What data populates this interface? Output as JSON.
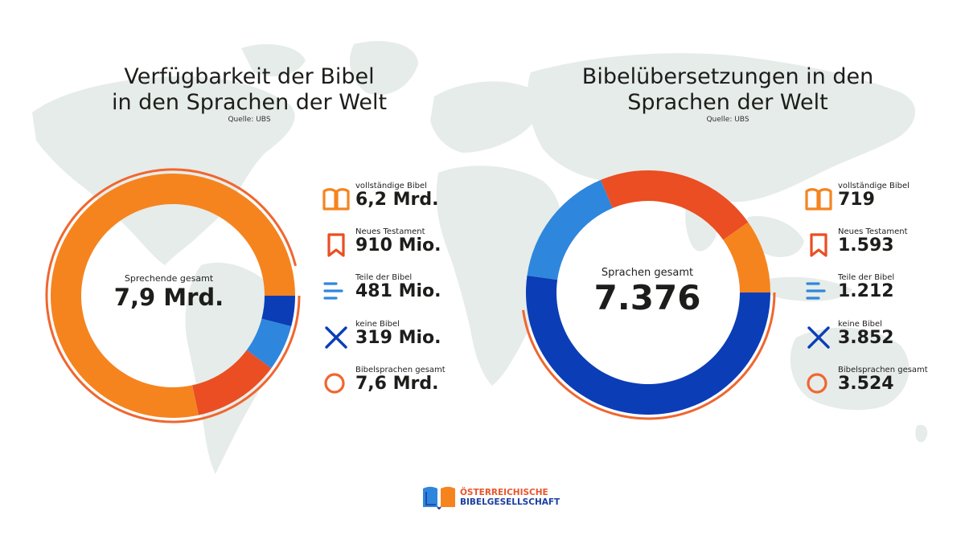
{
  "colors": {
    "map": "#e6ece9",
    "orange": "#f5841f",
    "red": "#ea4e22",
    "lightblue": "#2f86dd",
    "darkblue": "#0b3db7",
    "ring_outline": "#f0662f",
    "white": "#ffffff"
  },
  "left": {
    "title_lines": [
      "Verfügbarkeit der Bibel",
      "in den Sprachen der Welt"
    ],
    "source": "Quelle: UBS",
    "center_label": "Sprechende gesamt",
    "center_value": "7,9 Mrd.",
    "legend": [
      {
        "icon": "book-icon",
        "caption": "vollständige Bibel",
        "value": "6,2 Mrd."
      },
      {
        "icon": "bookmark-icon",
        "caption": "Neues Testament",
        "value": "910 Mio."
      },
      {
        "icon": "list-lines-icon",
        "caption": "Teile der Bibel",
        "value": "481 Mio."
      },
      {
        "icon": "cross-icon",
        "caption": "keine Bibel",
        "value": "319 Mio."
      },
      {
        "icon": "circle-icon",
        "caption": "Bibelsprachen gesamt",
        "value": "7,6 Mrd."
      }
    ]
  },
  "right": {
    "title_lines": [
      "Bibelübersetzungen in den",
      "Sprachen der Welt"
    ],
    "source": "Quelle: UBS",
    "center_label": "Sprachen gesamt",
    "center_value": "7.376",
    "legend": [
      {
        "icon": "book-icon",
        "caption": "vollständige Bibel",
        "value": "719"
      },
      {
        "icon": "bookmark-icon",
        "caption": "Neues Testament",
        "value": "1.593"
      },
      {
        "icon": "list-lines-icon",
        "caption": "Teile der Bibel",
        "value": "1.212"
      },
      {
        "icon": "cross-icon",
        "caption": "keine Bibel",
        "value": "3.852"
      },
      {
        "icon": "circle-icon",
        "caption": "Bibelsprachen gesamt",
        "value": "3.524"
      }
    ]
  },
  "logo": {
    "line1": "ÖSTERREICHISCHE",
    "line2": "BIBELGESELLSCHAFT"
  },
  "chart_data": [
    {
      "type": "pie",
      "title": "Verfügbarkeit der Bibel in den Sprachen der Welt",
      "center_label": "Sprechende gesamt",
      "total": 7.9,
      "unit": "Mrd.",
      "categories": [
        "vollständige Bibel",
        "Neues Testament",
        "Teile der Bibel",
        "keine Bibel"
      ],
      "values": [
        6.2,
        0.91,
        0.481,
        0.319
      ],
      "colors": [
        "#f5841f",
        "#ea4e22",
        "#2f86dd",
        "#0b3db7"
      ],
      "highlight_arc": {
        "label": "Bibelsprachen gesamt",
        "value": 7.6
      }
    },
    {
      "type": "pie",
      "title": "Bibelübersetzungen in den Sprachen der Welt",
      "center_label": "Sprachen gesamt",
      "total": 7376,
      "categories": [
        "vollständige Bibel",
        "Neues Testament",
        "Teile der Bibel",
        "keine Bibel"
      ],
      "values": [
        719,
        1593,
        1212,
        3852
      ],
      "colors": [
        "#f5841f",
        "#ea4e22",
        "#2f86dd",
        "#0b3db7"
      ],
      "highlight_arc": {
        "label": "Bibelsprachen gesamt",
        "value": 3524
      }
    }
  ]
}
